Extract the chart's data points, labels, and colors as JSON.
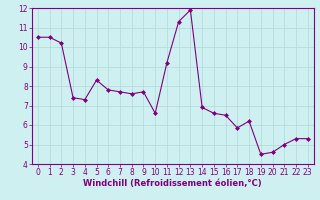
{
  "x": [
    0,
    1,
    2,
    3,
    4,
    5,
    6,
    7,
    8,
    9,
    10,
    11,
    12,
    13,
    14,
    15,
    16,
    17,
    18,
    19,
    20,
    21,
    22,
    23
  ],
  "y": [
    10.5,
    10.5,
    10.2,
    7.4,
    7.3,
    8.3,
    7.8,
    7.7,
    7.6,
    7.7,
    6.6,
    9.2,
    11.3,
    11.9,
    6.9,
    6.6,
    6.5,
    5.85,
    6.2,
    4.5,
    4.6,
    5.0,
    5.3,
    5.3
  ],
  "line_color": "#800080",
  "marker": "D",
  "marker_size": 2,
  "linewidth": 0.8,
  "xlabel": "Windchill (Refroidissement éolien,°C)",
  "xlabel_fontsize": 6,
  "ylim": [
    4,
    12
  ],
  "xlim": [
    -0.5,
    23.5
  ],
  "yticks": [
    4,
    5,
    6,
    7,
    8,
    9,
    10,
    11,
    12
  ],
  "xticks": [
    0,
    1,
    2,
    3,
    4,
    5,
    6,
    7,
    8,
    9,
    10,
    11,
    12,
    13,
    14,
    15,
    16,
    17,
    18,
    19,
    20,
    21,
    22,
    23
  ],
  "grid_color": "#b0d8d8",
  "background_color": "#cff0f0",
  "tick_fontsize": 5.5,
  "spine_color": "#800080"
}
